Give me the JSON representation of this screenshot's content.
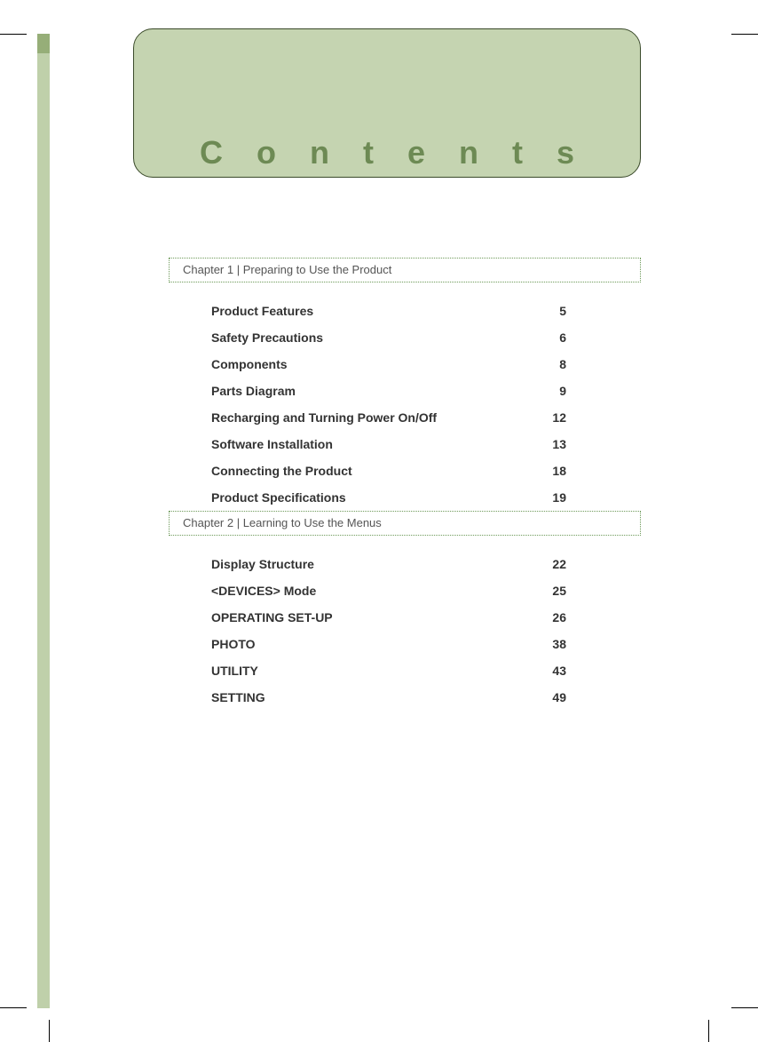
{
  "header": {
    "title": "Contents"
  },
  "colors": {
    "banner_bg": "#c5d4b1",
    "banner_border": "#3a4a2a",
    "title_color": "#6d8a54",
    "side_tab": "#bfd0aa",
    "side_tab_accent": "#96ae78",
    "dotted_border": "#6e9a5a",
    "text": "#333333",
    "chapter_text": "#555555",
    "page_bg": "#ffffff"
  },
  "typography": {
    "title_fontsize": 36,
    "title_letter_spacing": 38,
    "chapter_fontsize": 13,
    "toc_fontsize": 14,
    "toc_fontweight": "bold"
  },
  "chapters": [
    {
      "title": "Chapter 1 | Preparing to Use the Product",
      "items": [
        {
          "label": "Product Features",
          "page": "5"
        },
        {
          "label": "Safety Precautions",
          "page": "6"
        },
        {
          "label": "Components",
          "page": "8"
        },
        {
          "label": "Parts Diagram",
          "page": "9"
        },
        {
          "label": "Recharging and Turning Power On/Off",
          "page": "12"
        },
        {
          "label": "Software Installation",
          "page": "13"
        },
        {
          "label": "Connecting the Product",
          "page": "18"
        },
        {
          "label": "Product Specifications",
          "page": "19"
        }
      ]
    },
    {
      "title": "Chapter 2 | Learning to Use the Menus",
      "items": [
        {
          "label": "Display Structure",
          "page": "22"
        },
        {
          "label": "<DEVICES> Mode",
          "page": "25"
        },
        {
          "label": "OPERATING SET-UP",
          "page": "26"
        },
        {
          "label": "PHOTO",
          "page": "38"
        },
        {
          "label": "UTILITY",
          "page": "43"
        },
        {
          "label": "SETTING",
          "page": "49"
        }
      ]
    }
  ]
}
